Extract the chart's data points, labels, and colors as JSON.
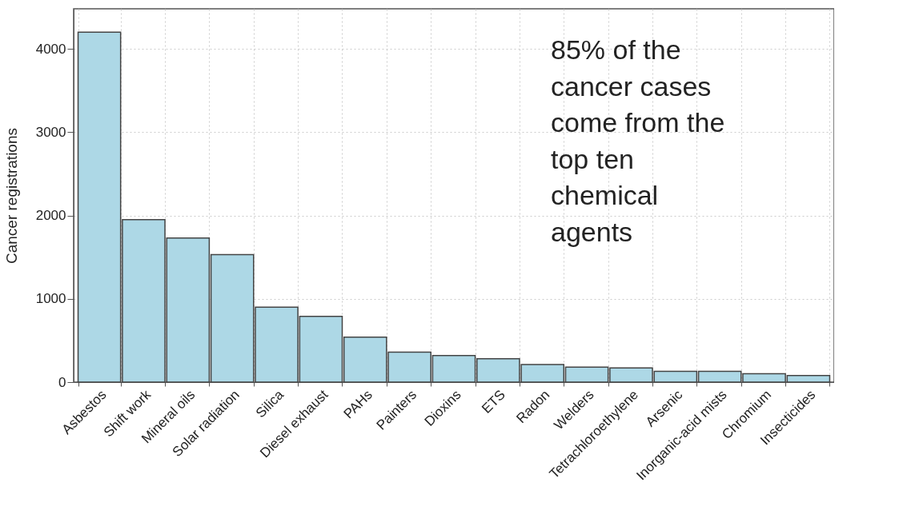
{
  "chart_data": {
    "type": "bar",
    "ylabel": "Cancer registrations",
    "categories": [
      "Asbestos",
      "Shift work",
      "Mineral oils",
      "Solar radiation",
      "Silica",
      "Diesel exhaust",
      "PAHs",
      "Painters",
      "Dioxins",
      "ETS",
      "Radon",
      "Welders",
      "Tetrachloroethylene",
      "Arsenic",
      "Inorganic-acid mists",
      "Chromium",
      "Insecticides"
    ],
    "values": [
      4200,
      1950,
      1730,
      1530,
      900,
      790,
      540,
      360,
      320,
      280,
      210,
      180,
      170,
      130,
      130,
      100,
      80
    ],
    "color": "#add8e6",
    "ylim": [
      0,
      4480
    ],
    "yticks": [
      0,
      1000,
      2000,
      3000,
      4000
    ],
    "grid": true,
    "legend": false,
    "annotations": [
      "85% of the cancer cases come from the top ten chemical agents"
    ]
  }
}
